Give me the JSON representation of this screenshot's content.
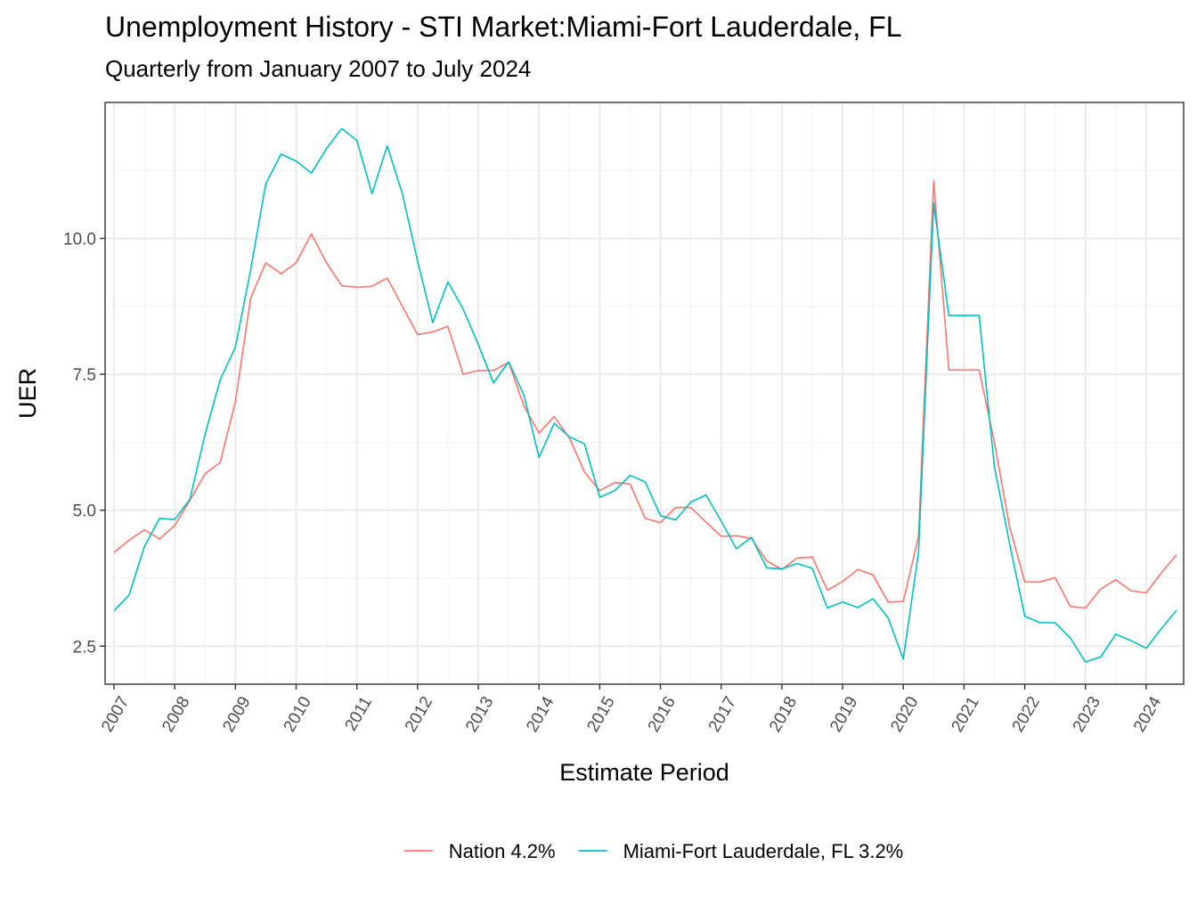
{
  "chart_data": {
    "type": "line",
    "title": "Unemployment History - STI Market:Miami-Fort Lauderdale, FL",
    "subtitle": "Quarterly from January 2007 to July 2024",
    "xlabel": "Estimate Period",
    "ylabel": "UER",
    "xlim": [
      2007,
      2024.5
    ],
    "ylim": [
      1.8,
      12.5
    ],
    "x_ticks": [
      2007,
      2008,
      2009,
      2010,
      2011,
      2012,
      2013,
      2014,
      2015,
      2016,
      2017,
      2018,
      2019,
      2020,
      2021,
      2022,
      2023,
      2024
    ],
    "x_tick_labels": [
      "2007",
      "2008",
      "2009",
      "2010",
      "2011",
      "2012",
      "2013",
      "2014",
      "2015",
      "2016",
      "2017",
      "2018",
      "2019",
      "2020",
      "2021",
      "2022",
      "2023",
      "2024"
    ],
    "y_ticks": [
      2.5,
      5.0,
      7.5,
      10.0
    ],
    "y_tick_labels": [
      "2.5",
      "5.0",
      "7.5",
      "10.0"
    ],
    "grid": true,
    "legend_position": "bottom",
    "x": [
      2007.0,
      2007.25,
      2007.5,
      2007.75,
      2008.0,
      2008.25,
      2008.5,
      2008.75,
      2009.0,
      2009.25,
      2009.5,
      2009.75,
      2010.0,
      2010.25,
      2010.5,
      2010.75,
      2011.0,
      2011.25,
      2011.5,
      2011.75,
      2012.0,
      2012.25,
      2012.5,
      2012.75,
      2013.0,
      2013.25,
      2013.5,
      2013.75,
      2014.0,
      2014.25,
      2014.5,
      2014.75,
      2015.0,
      2015.25,
      2015.5,
      2015.75,
      2016.0,
      2016.25,
      2016.5,
      2016.75,
      2017.0,
      2017.25,
      2017.5,
      2017.75,
      2018.0,
      2018.25,
      2018.5,
      2018.75,
      2019.0,
      2019.25,
      2019.5,
      2019.75,
      2020.0,
      2020.25,
      2020.5,
      2020.75,
      2021.0,
      2021.25,
      2021.5,
      2021.75,
      2022.0,
      2022.25,
      2022.5,
      2022.75,
      2023.0,
      2023.25,
      2023.5,
      2023.75,
      2024.0,
      2024.25,
      2024.5
    ],
    "series": [
      {
        "name": "Nation 4.2%",
        "color": "#F8766D",
        "values": [
          4.22,
          4.45,
          4.64,
          4.47,
          4.72,
          5.18,
          5.67,
          5.88,
          7.0,
          8.9,
          9.55,
          9.35,
          9.55,
          10.08,
          9.55,
          9.13,
          9.1,
          9.12,
          9.27,
          8.75,
          8.23,
          8.28,
          8.38,
          7.5,
          7.57,
          7.57,
          7.72,
          6.92,
          6.42,
          6.72,
          6.33,
          5.7,
          5.36,
          5.51,
          5.48,
          4.85,
          4.77,
          5.05,
          5.05,
          4.78,
          4.52,
          4.53,
          4.48,
          4.07,
          3.91,
          4.12,
          4.14,
          3.53,
          3.69,
          3.91,
          3.81,
          3.31,
          3.32,
          4.52,
          11.05,
          7.58,
          7.58,
          7.58,
          6.25,
          4.7,
          3.68,
          3.68,
          3.76,
          3.23,
          3.2,
          3.55,
          3.72,
          3.52,
          3.48,
          3.85,
          4.18
        ]
      },
      {
        "name": "Miami-Fort Lauderdale, FL 3.2%",
        "color": "#00BFC4",
        "values": [
          3.15,
          3.44,
          4.33,
          4.85,
          4.83,
          5.2,
          6.4,
          7.4,
          8.0,
          9.42,
          11.0,
          11.55,
          11.42,
          11.2,
          11.65,
          12.02,
          11.8,
          10.82,
          11.7,
          10.82,
          9.58,
          8.45,
          9.2,
          8.7,
          8.05,
          7.34,
          7.73,
          7.12,
          5.97,
          6.6,
          6.35,
          6.22,
          5.24,
          5.36,
          5.64,
          5.52,
          4.9,
          4.82,
          5.15,
          5.28,
          4.8,
          4.29,
          4.5,
          3.94,
          3.92,
          4.02,
          3.93,
          3.2,
          3.31,
          3.21,
          3.37,
          3.02,
          2.26,
          4.22,
          10.65,
          8.58,
          8.58,
          8.58,
          5.8,
          4.39,
          3.05,
          2.93,
          2.93,
          2.65,
          2.21,
          2.3,
          2.72,
          2.6,
          2.46,
          2.82,
          3.16
        ]
      }
    ]
  }
}
